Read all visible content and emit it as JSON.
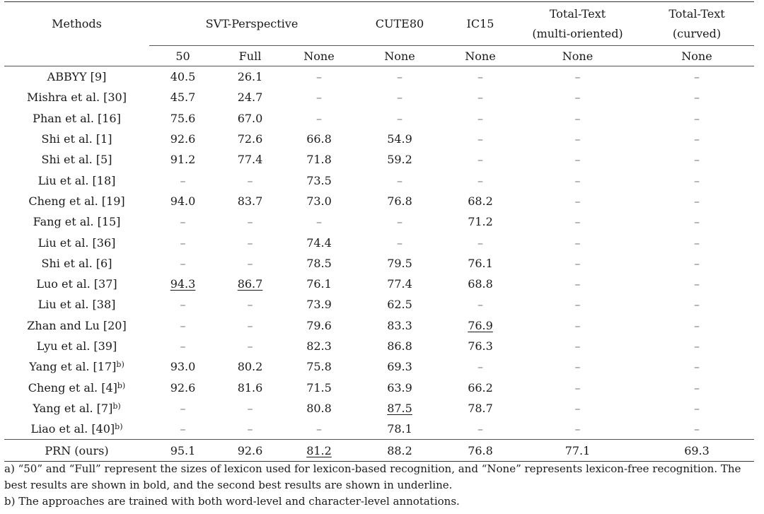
{
  "header": {
    "methods": "Methods",
    "svt": "SVT-Perspective",
    "cute": "CUTE80",
    "ic15": "IC15",
    "tt_multi_line1": "Total-Text",
    "tt_multi_line2": "(multi-oriented)",
    "tt_curved_line1": "Total-Text",
    "tt_curved_line2": "(curved)",
    "sub": [
      "50",
      "Full",
      "None",
      "None",
      "None",
      "None",
      "None"
    ]
  },
  "rows": [
    {
      "method": "ABBYY [9]",
      "sup": "",
      "v": [
        "40.5",
        "26.1",
        "–",
        "–",
        "–",
        "–",
        "–"
      ]
    },
    {
      "method": "Mishra et al. [30]",
      "sup": "",
      "v": [
        "45.7",
        "24.7",
        "–",
        "–",
        "–",
        "–",
        "–"
      ]
    },
    {
      "method": "Phan et al. [16]",
      "sup": "",
      "v": [
        "75.6",
        "67.0",
        "–",
        "–",
        "–",
        "–",
        "–"
      ]
    },
    {
      "method": "Shi et al. [1]",
      "sup": "",
      "v": [
        "92.6",
        "72.6",
        "66.8",
        "54.9",
        "–",
        "–",
        "–"
      ]
    },
    {
      "method": "Shi et al. [5]",
      "sup": "",
      "v": [
        "91.2",
        "77.4",
        "71.8",
        "59.2",
        "–",
        "–",
        "–"
      ]
    },
    {
      "method": "Liu et al. [18]",
      "sup": "",
      "v": [
        "–",
        "–",
        "73.5",
        "–",
        "–",
        "–",
        "–"
      ]
    },
    {
      "method": "Cheng et al. [19]",
      "sup": "",
      "v": [
        "94.0",
        "83.7",
        "73.0",
        "76.8",
        "68.2",
        "–",
        "–"
      ]
    },
    {
      "method": "Fang et al. [15]",
      "sup": "",
      "v": [
        "–",
        "–",
        "–",
        "–",
        "71.2",
        "–",
        "–"
      ]
    },
    {
      "method": "Liu et al. [36]",
      "sup": "",
      "v": [
        "–",
        "–",
        "74.4",
        "–",
        "–",
        "–",
        "–"
      ]
    },
    {
      "method": "Shi et al. [6]",
      "sup": "",
      "v": [
        "–",
        "–",
        "78.5",
        "79.5",
        "76.1",
        "–",
        "–"
      ]
    },
    {
      "method": "Luo et al. [37]",
      "sup": "",
      "v": [
        "94.3",
        "86.7",
        "76.1",
        "77.4",
        "68.8",
        "–",
        "–"
      ]
    },
    {
      "method": "Liu et al. [38]",
      "sup": "",
      "v": [
        "–",
        "–",
        "73.9",
        "62.5",
        "–",
        "–",
        "–"
      ]
    },
    {
      "method": "Zhan and Lu [20]",
      "sup": "",
      "v": [
        "–",
        "–",
        "79.6",
        "83.3",
        "76.9",
        "–",
        "–"
      ]
    },
    {
      "method": "Lyu et al. [39]",
      "sup": "",
      "v": [
        "–",
        "–",
        "82.3",
        "86.8",
        "76.3",
        "–",
        "–"
      ]
    },
    {
      "method": "Yang et al. [17]",
      "sup": "b)",
      "v": [
        "93.0",
        "80.2",
        "75.8",
        "69.3",
        "–",
        "–",
        "–"
      ]
    },
    {
      "method": "Cheng et al. [4]",
      "sup": "b)",
      "v": [
        "92.6",
        "81.6",
        "71.5",
        "63.9",
        "66.2",
        "–",
        "–"
      ]
    },
    {
      "method": "Yang et al. [7]",
      "sup": "b)",
      "v": [
        "–",
        "–",
        "80.8",
        "87.5",
        "78.7",
        "–",
        "–"
      ]
    },
    {
      "method": "Liao et al. [40]",
      "sup": "b)",
      "v": [
        "–",
        "–",
        "–",
        "78.1",
        "–",
        "–",
        "–"
      ]
    }
  ],
  "prn": {
    "method": "PRN (ours)",
    "v": [
      "95.1",
      "92.6",
      "81.2",
      "88.2",
      "76.8",
      "77.1",
      "69.3"
    ]
  },
  "notes": {
    "a": "a) “50” and “Full” represent the sizes of lexicon used for lexicon-based recognition, and “None” represents lexicon-free recognition. The best results are shown in bold, and the second best results are shown in underline.",
    "b": "b) The approaches are trained with both word-level and character-level annotations."
  }
}
